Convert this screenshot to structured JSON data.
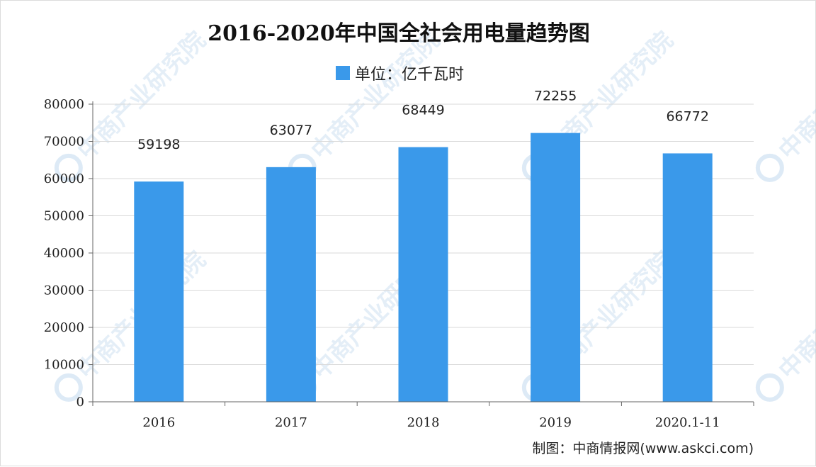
{
  "chart_data": {
    "type": "bar",
    "title": "2016-2020年中国全社会用电量趋势图",
    "legend": {
      "label": "单位：亿千瓦时",
      "placement": "top-center",
      "color": "#3a99ea"
    },
    "categories": [
      "2016",
      "2017",
      "2018",
      "2019",
      "2020.1-11"
    ],
    "series": [
      {
        "name": "单位：亿千瓦时",
        "values": [
          59198,
          63077,
          68449,
          72255,
          66772
        ]
      }
    ],
    "data_labels": [
      "59198",
      "63077",
      "68449",
      "72255",
      "66772"
    ],
    "ylim": [
      0,
      80000
    ],
    "yticks": [
      0,
      10000,
      20000,
      30000,
      40000,
      50000,
      60000,
      70000,
      80000
    ],
    "ytick_labels": [
      "0",
      "10000",
      "20000",
      "30000",
      "40000",
      "50000",
      "60000",
      "70000",
      "80000"
    ],
    "xlabel": "",
    "ylabel": "",
    "grid": true,
    "colors": {
      "bar": "#3a99ea",
      "grid": "#d9d9d9",
      "axis": "#666666"
    }
  },
  "source": "制图：中商情报网(www.askci.com)",
  "watermark": {
    "text": "中商产业研究院",
    "color": "#9fc4e6"
  }
}
